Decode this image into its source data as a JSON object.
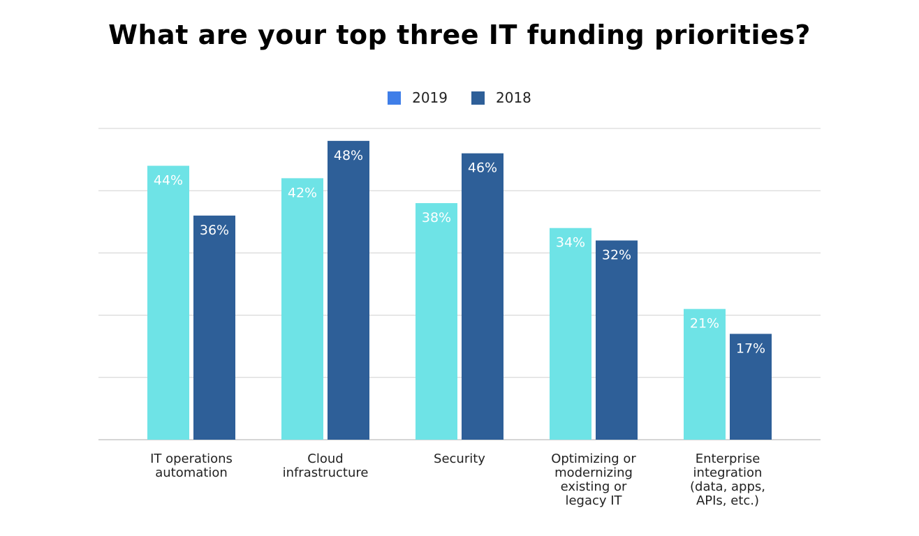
{
  "chart_data": {
    "type": "bar",
    "title": "What are your top three IT funding priorities?",
    "categories": [
      [
        "IT operations",
        "automation"
      ],
      [
        "Cloud",
        "infrastructure"
      ],
      [
        "Security"
      ],
      [
        "Optimizing or",
        "modernizing",
        "existing or",
        "legacy IT"
      ],
      [
        "Enterprise",
        "integration",
        "(data, apps,",
        "APIs, etc.)"
      ]
    ],
    "series": [
      {
        "name": "2019",
        "values": [
          44,
          42,
          38,
          34,
          21
        ],
        "color": "#6ee3e6",
        "legend_color": "#3f7ee8"
      },
      {
        "name": "2018",
        "values": [
          36,
          48,
          46,
          32,
          17
        ],
        "color": "#2e5f98",
        "legend_color": "#2e5f98"
      }
    ],
    "value_suffix": "%",
    "ylim": [
      0,
      50
    ],
    "grid": true,
    "grid_step": 10,
    "legend_position": "top-center",
    "xlabel": "",
    "ylabel": ""
  }
}
